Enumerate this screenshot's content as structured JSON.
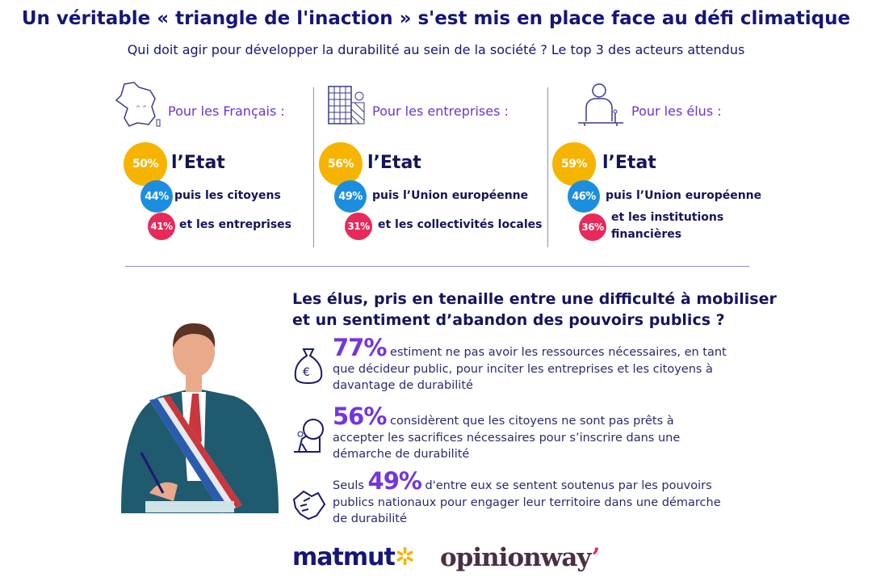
{
  "title": "Un véritable « triangle de l'inaction » s'est mis en place face au défi climatique",
  "subtitle": "Qui doit agir pour développer la durabilité au sein de la société ? Le top 3 des acteurs attendus",
  "columns": [
    {
      "label": "Pour les Français :",
      "icon": "france-map-icon",
      "items": [
        {
          "pct": "50%",
          "text": "l’Etat"
        },
        {
          "pct": "44%",
          "text": "puis les citoyens"
        },
        {
          "pct": "41%",
          "text": "et les entreprises"
        }
      ]
    },
    {
      "label": "Pour les entreprises :",
      "icon": "building-icon",
      "items": [
        {
          "pct": "56%",
          "text": "l’Etat"
        },
        {
          "pct": "49%",
          "text": "puis l’Union européenne"
        },
        {
          "pct": "31%",
          "text": "et les collectivités locales"
        }
      ]
    },
    {
      "label": "Pour les élus :",
      "icon": "speaker-podium-icon",
      "items": [
        {
          "pct": "59%",
          "text": "l’Etat"
        },
        {
          "pct": "46%",
          "text": "puis l’Union européenne"
        },
        {
          "pct": "36%",
          "text": "et les institutions financières"
        }
      ]
    }
  ],
  "colors": {
    "rank1": "#f6b400",
    "rank2": "#1c8ee0",
    "rank3": "#e8295a",
    "accent": "#7336dc",
    "navy": "#15157a"
  },
  "section": {
    "heading_line1": "Les élus, pris en tenaille entre une difficulté à mobiliser",
    "heading_line2": "et un sentiment d’abandon des pouvoirs publics ?",
    "items": [
      {
        "icon": "money-bag-icon",
        "prefix": "",
        "pct": "77%",
        "text": " estiment ne pas avoir les ressources nécessaires, en tant que décideur public, pour inciter les entreprises et les citoyens à davantage de durabilité"
      },
      {
        "icon": "pushing-boulder-icon",
        "prefix": "",
        "pct": "56%",
        "text": " considèrent que les citoyens ne sont pas prêts à accepter les sacrifices nécessaires pour s’inscrire dans une démarche de durabilité"
      },
      {
        "icon": "handshake-icon",
        "prefix": "Seuls ",
        "pct": "49%",
        "text": " d'entre eux se sentent soutenus par les pouvoirs publics nationaux pour engager leur territoire dans une démarche de durabilité"
      }
    ]
  },
  "logos": {
    "matmut": "matmut",
    "opinionway": "opinionway"
  }
}
